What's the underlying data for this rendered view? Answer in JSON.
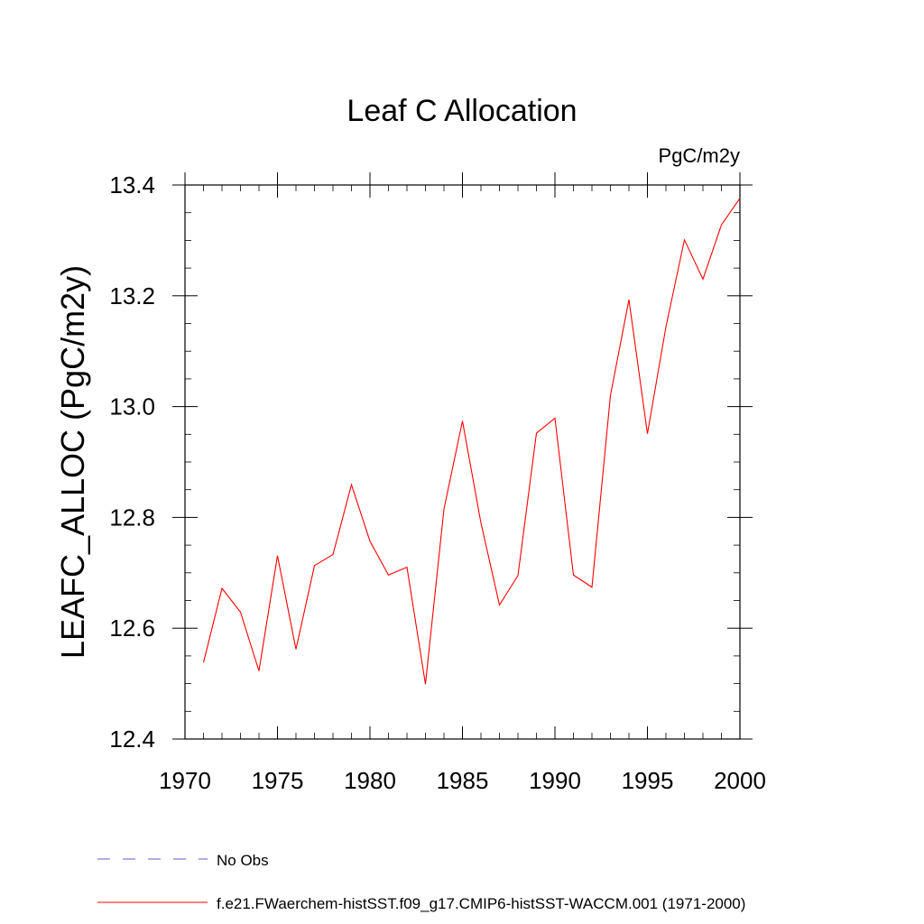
{
  "chart_data": {
    "type": "line",
    "title": "Leaf C Allocation",
    "units_label": "PgC/m2y",
    "ylabel": "LEAFC_ALLOC  (PgC/m2y)",
    "xlabel": "",
    "xlim": [
      1970,
      2000
    ],
    "ylim": [
      12.4,
      13.4
    ],
    "x_ticks": [
      1970,
      1975,
      1980,
      1985,
      1990,
      1995,
      2000
    ],
    "y_ticks": [
      12.4,
      12.6,
      12.8,
      13.0,
      13.2,
      13.4
    ],
    "y_tick_labels": [
      "12.4",
      "12.6",
      "12.8",
      "13.0",
      "13.2",
      "13.4"
    ],
    "grid": false,
    "legend_position": "bottom-left",
    "legend": [
      {
        "label": "No Obs",
        "color": "#6a5acd",
        "style": "dashed"
      },
      {
        "label": "f.e21.FWaerchem-histSST.f09_g17.CMIP6-histSST-WACCM.001 (1971-2000)",
        "color": "#ff0000",
        "style": "solid"
      }
    ],
    "series": [
      {
        "name": "f.e21.FWaerchem-histSST.f09_g17.CMIP6-histSST-WACCM.001 (1971-2000)",
        "color": "#ff0000",
        "x": [
          1971,
          1972,
          1973,
          1974,
          1975,
          1976,
          1977,
          1978,
          1979,
          1980,
          1981,
          1982,
          1983,
          1984,
          1985,
          1986,
          1987,
          1988,
          1989,
          1990,
          1991,
          1992,
          1993,
          1994,
          1995,
          1996,
          1997,
          1998,
          1999,
          2000
        ],
        "values": [
          12.538,
          12.672,
          12.629,
          12.523,
          12.731,
          12.562,
          12.713,
          12.733,
          12.859,
          12.757,
          12.696,
          12.71,
          12.499,
          12.815,
          12.974,
          12.79,
          12.642,
          12.695,
          12.952,
          12.979,
          12.696,
          12.674,
          13.02,
          13.193,
          12.951,
          13.144,
          13.301,
          13.23,
          13.328,
          13.376
        ]
      }
    ]
  }
}
